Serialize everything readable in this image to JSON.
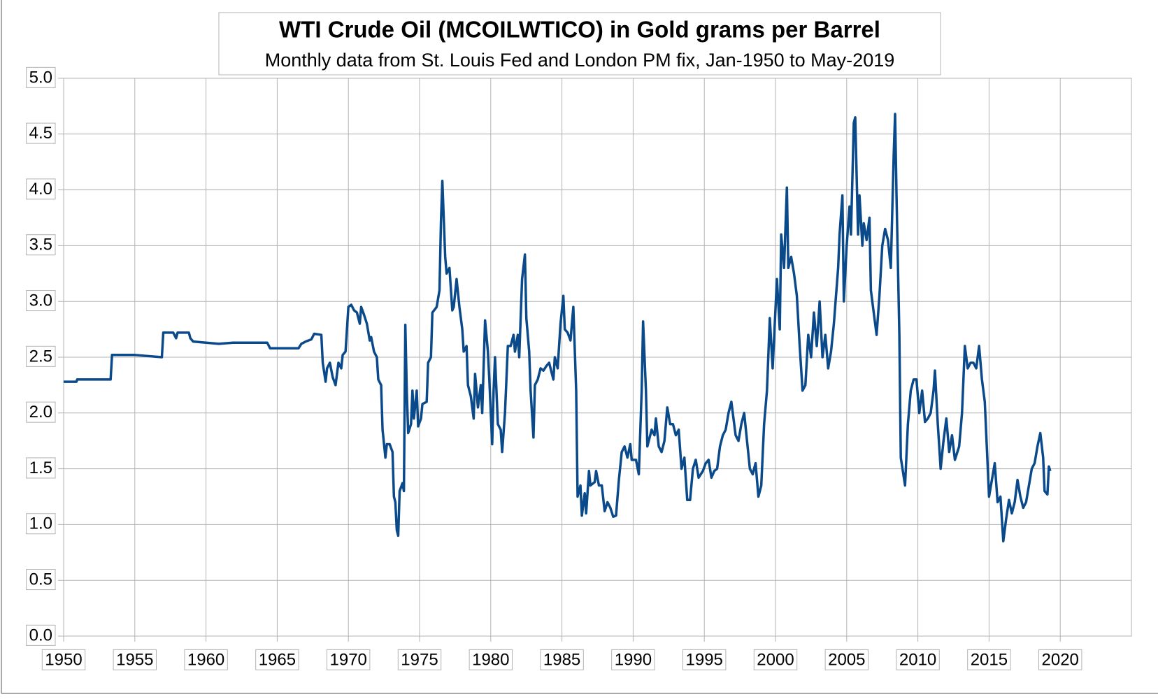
{
  "chart_data": {
    "type": "line",
    "title": "WTI Crude Oil (MCOILWTICO) in Gold grams per Barrel",
    "subtitle": "Monthly data from St. Louis Fed and London PM fix, Jan-1950 to May-2019",
    "color": "#0b4a8a",
    "grid": true,
    "xlim": [
      1950,
      2025
    ],
    "xticks": [
      1950,
      1955,
      1960,
      1965,
      1970,
      1975,
      1980,
      1985,
      1990,
      1995,
      2000,
      2005,
      2010,
      2015,
      2020
    ],
    "ylim": [
      0,
      5
    ],
    "yticks": [
      {
        "value": 0,
        "label": "0.0"
      },
      0.5,
      {
        "value": 1,
        "label": "1.0"
      },
      1.5,
      {
        "value": 2,
        "label": "2.0"
      },
      2.5,
      {
        "value": 3,
        "label": "3.0"
      },
      3.5,
      {
        "value": 4,
        "label": "4.0"
      },
      4.5,
      {
        "value": 5,
        "label": "5.0"
      }
    ],
    "x": [
      1950.0,
      1950.9,
      1950.95,
      1953.3,
      1953.4,
      1955.0,
      1956.9,
      1957.0,
      1957.7,
      1957.9,
      1958.0,
      1958.8,
      1958.9,
      1959.1,
      1960.9,
      1961.9,
      1964.3,
      1964.5,
      1966.5,
      1966.7,
      1967.0,
      1967.4,
      1967.6,
      1968.1,
      1968.2,
      1968.4,
      1968.5,
      1968.7,
      1968.9,
      1969.1,
      1969.3,
      1969.5,
      1969.6,
      1969.8,
      1970.0,
      1970.2,
      1970.4,
      1970.6,
      1970.8,
      1970.9,
      1971.1,
      1971.3,
      1971.5,
      1971.6,
      1971.8,
      1972.0,
      1972.1,
      1972.3,
      1972.4,
      1972.6,
      1972.7,
      1972.9,
      1973.1,
      1973.2,
      1973.3,
      1973.4,
      1973.5,
      1973.6,
      1973.8,
      1973.9,
      1974.0,
      1974.1,
      1974.2,
      1974.4,
      1974.5,
      1974.6,
      1974.8,
      1974.9,
      1975.1,
      1975.2,
      1975.5,
      1975.6,
      1975.8,
      1975.9,
      1976.2,
      1976.4,
      1976.5,
      1976.6,
      1976.8,
      1976.9,
      1977.1,
      1977.3,
      1977.4,
      1977.6,
      1977.8,
      1978.0,
      1978.1,
      1978.3,
      1978.4,
      1978.6,
      1978.8,
      1978.9,
      1979.1,
      1979.3,
      1979.4,
      1979.6,
      1979.8,
      1979.9,
      1980.1,
      1980.2,
      1980.3,
      1980.5,
      1980.7,
      1980.8,
      1981.0,
      1981.2,
      1981.4,
      1981.6,
      1981.7,
      1981.9,
      1982.0,
      1982.2,
      1982.4,
      1982.5,
      1982.7,
      1982.8,
      1983.0,
      1983.1,
      1983.3,
      1983.5,
      1983.7,
      1983.9,
      1984.1,
      1984.4,
      1984.5,
      1984.7,
      1984.9,
      1985.1,
      1985.2,
      1985.4,
      1985.6,
      1985.8,
      1986.0,
      1986.1,
      1986.3,
      1986.4,
      1986.6,
      1986.7,
      1986.9,
      1987.0,
      1987.3,
      1987.4,
      1987.6,
      1987.8,
      1988.0,
      1988.2,
      1988.4,
      1988.6,
      1988.8,
      1989.0,
      1989.2,
      1989.4,
      1989.6,
      1989.8,
      1989.9,
      1990.2,
      1990.4,
      1990.6,
      1990.7,
      1990.9,
      1991.0,
      1991.3,
      1991.5,
      1991.6,
      1991.8,
      1992.0,
      1992.2,
      1992.4,
      1992.6,
      1992.8,
      1993.0,
      1993.2,
      1993.4,
      1993.6,
      1993.8,
      1994.0,
      1994.2,
      1994.4,
      1994.6,
      1994.9,
      1995.1,
      1995.3,
      1995.5,
      1995.7,
      1995.9,
      1996.1,
      1996.3,
      1996.5,
      1996.7,
      1996.9,
      1997.2,
      1997.4,
      1997.6,
      1997.8,
      1998.0,
      1998.2,
      1998.4,
      1998.6,
      1998.8,
      1999.0,
      1999.2,
      1999.4,
      1999.6,
      1999.8,
      2000.1,
      2000.3,
      2000.4,
      2000.6,
      2000.8,
      2000.9,
      2001.1,
      2001.3,
      2001.5,
      2001.7,
      2001.9,
      2002.1,
      2002.3,
      2002.5,
      2002.7,
      2002.9,
      2003.1,
      2003.3,
      2003.5,
      2003.7,
      2003.9,
      2004.1,
      2004.4,
      2004.5,
      2004.7,
      2004.8,
      2005.0,
      2005.2,
      2005.3,
      2005.5,
      2005.6,
      2005.8,
      2005.9,
      2006.1,
      2006.2,
      2006.4,
      2006.6,
      2006.7,
      2006.9,
      2007.1,
      2007.3,
      2007.5,
      2007.7,
      2007.9,
      2008.1,
      2008.3,
      2008.4,
      2008.5,
      2008.7,
      2008.8,
      2009.1,
      2009.3,
      2009.5,
      2009.7,
      2009.9,
      2010.1,
      2010.3,
      2010.5,
      2010.7,
      2010.9,
      2011.1,
      2011.2,
      2011.4,
      2011.6,
      2011.8,
      2012.0,
      2012.2,
      2012.4,
      2012.6,
      2012.9,
      2013.1,
      2013.3,
      2013.5,
      2013.7,
      2013.9,
      2014.1,
      2014.3,
      2014.5,
      2014.7,
      2015.0,
      2015.2,
      2015.4,
      2015.6,
      2015.8,
      2016.0,
      2016.2,
      2016.4,
      2016.6,
      2016.8,
      2017.0,
      2017.2,
      2017.4,
      2017.6,
      2017.8,
      2018.0,
      2018.2,
      2018.4,
      2018.6,
      2018.8,
      2018.9,
      2019.1,
      2019.2,
      2019.3
    ],
    "values": [
      2.28,
      2.28,
      2.3,
      2.3,
      2.52,
      2.52,
      2.5,
      2.72,
      2.72,
      2.67,
      2.72,
      2.72,
      2.67,
      2.64,
      2.62,
      2.63,
      2.63,
      2.58,
      2.58,
      2.62,
      2.64,
      2.66,
      2.71,
      2.7,
      2.45,
      2.28,
      2.4,
      2.45,
      2.32,
      2.25,
      2.45,
      2.4,
      2.52,
      2.55,
      2.95,
      2.97,
      2.92,
      2.9,
      2.8,
      2.95,
      2.88,
      2.8,
      2.65,
      2.68,
      2.55,
      2.5,
      2.3,
      2.25,
      1.85,
      1.6,
      1.72,
      1.72,
      1.65,
      1.25,
      1.2,
      0.95,
      0.9,
      1.3,
      1.37,
      1.3,
      2.79,
      2.2,
      1.82,
      1.9,
      2.2,
      1.95,
      2.2,
      1.88,
      1.95,
      2.08,
      2.1,
      2.45,
      2.5,
      2.9,
      2.95,
      3.1,
      3.7,
      4.08,
      3.4,
      3.25,
      3.3,
      2.92,
      2.95,
      3.2,
      2.95,
      2.75,
      2.55,
      2.6,
      2.25,
      2.15,
      1.95,
      2.35,
      2.05,
      2.25,
      2.0,
      2.83,
      2.55,
      2.3,
      1.72,
      2.2,
      2.5,
      1.9,
      1.85,
      1.65,
      2.0,
      2.6,
      2.6,
      2.7,
      2.55,
      2.7,
      2.5,
      3.2,
      3.42,
      2.85,
      2.55,
      2.2,
      1.78,
      2.25,
      2.3,
      2.4,
      2.38,
      2.42,
      2.45,
      2.3,
      2.5,
      2.4,
      2.8,
      3.05,
      2.75,
      2.72,
      2.65,
      2.95,
      2.2,
      1.25,
      1.35,
      1.08,
      1.28,
      1.1,
      1.48,
      1.35,
      1.38,
      1.48,
      1.35,
      1.35,
      1.12,
      1.2,
      1.15,
      1.07,
      1.08,
      1.4,
      1.65,
      1.7,
      1.6,
      1.72,
      1.58,
      1.58,
      1.45,
      2.2,
      2.82,
      2.2,
      1.7,
      1.85,
      1.8,
      1.95,
      1.7,
      1.65,
      1.75,
      2.05,
      1.9,
      1.9,
      1.8,
      1.85,
      1.5,
      1.6,
      1.22,
      1.22,
      1.5,
      1.58,
      1.42,
      1.48,
      1.55,
      1.58,
      1.42,
      1.48,
      1.5,
      1.7,
      1.8,
      1.85,
      2.0,
      2.1,
      1.8,
      1.75,
      1.9,
      2.0,
      1.75,
      1.5,
      1.45,
      1.55,
      1.25,
      1.35,
      1.9,
      2.2,
      2.85,
      2.4,
      3.2,
      2.75,
      3.6,
      3.3,
      4.02,
      3.3,
      3.4,
      3.25,
      3.05,
      2.6,
      2.2,
      2.25,
      2.7,
      2.5,
      2.9,
      2.6,
      3.0,
      2.5,
      2.7,
      2.4,
      2.55,
      2.8,
      3.3,
      3.6,
      3.95,
      3.0,
      3.5,
      3.85,
      3.6,
      4.6,
      4.65,
      3.6,
      3.95,
      3.5,
      3.7,
      3.55,
      3.75,
      3.1,
      2.9,
      2.7,
      3.05,
      3.5,
      3.65,
      3.55,
      3.3,
      4.3,
      4.68,
      3.95,
      2.7,
      1.6,
      1.35,
      1.9,
      2.2,
      2.3,
      2.3,
      2.0,
      2.2,
      1.92,
      1.95,
      2.0,
      2.2,
      2.38,
      1.9,
      1.5,
      1.75,
      1.95,
      1.65,
      1.8,
      1.58,
      1.7,
      2.0,
      2.6,
      2.4,
      2.45,
      2.45,
      2.4,
      2.6,
      2.3,
      2.1,
      1.25,
      1.4,
      1.55,
      1.2,
      1.25,
      0.85,
      1.05,
      1.22,
      1.1,
      1.2,
      1.4,
      1.25,
      1.15,
      1.2,
      1.35,
      1.5,
      1.55,
      1.7,
      1.82,
      1.6,
      1.3,
      1.27,
      1.52,
      1.48
    ]
  }
}
